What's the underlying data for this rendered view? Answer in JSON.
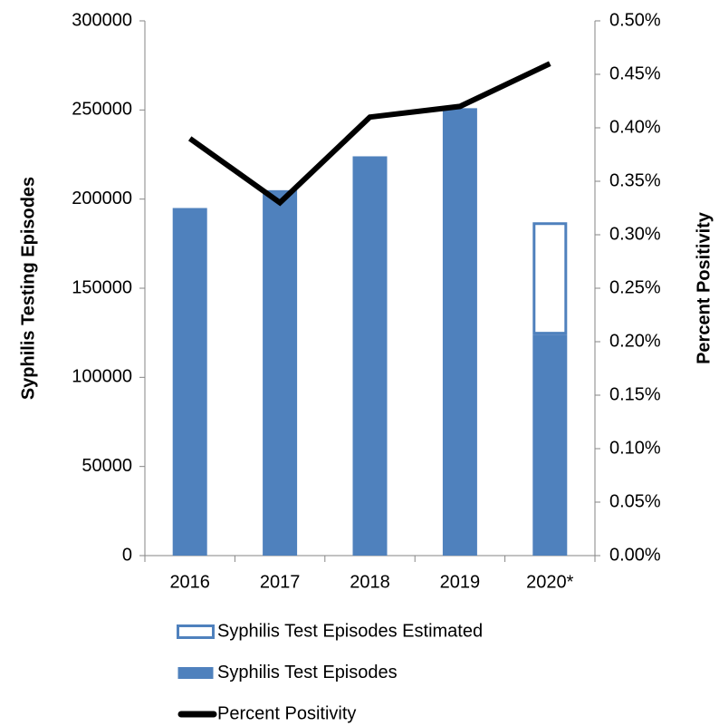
{
  "chart_data": {
    "type": "bar",
    "categories": [
      "2016",
      "2017",
      "2018",
      "2019",
      "2020*"
    ],
    "series": [
      {
        "name": "Syphilis Test Episodes Estimated",
        "type": "bar",
        "color": "#4f81bd",
        "fill": "#ffffff",
        "values": [
          null,
          null,
          null,
          null,
          63000
        ]
      },
      {
        "name": "Syphilis Test Episodes",
        "type": "bar",
        "color": "#4f81bd",
        "fill": "#4f81bd",
        "values": [
          195000,
          205000,
          224000,
          251000,
          124000
        ]
      },
      {
        "name": "Percent Positivity",
        "type": "line",
        "axis": "y2",
        "color": "#000000",
        "values": [
          0.39,
          0.33,
          0.41,
          0.42,
          0.46
        ]
      }
    ],
    "stacked": true,
    "ylabel": "Syphilis Testing Episodes",
    "y2label": "Percent Positivity",
    "ylim": [
      0,
      300000
    ],
    "yticks": [
      0,
      50000,
      100000,
      150000,
      200000,
      250000,
      300000
    ],
    "y2lim": [
      0,
      0.5
    ],
    "y2ticks": [
      {
        "value": 0,
        "label": "0.00%"
      },
      {
        "value": 0.05,
        "label": "0.05%"
      },
      {
        "value": 0.1,
        "label": "0.10%"
      },
      {
        "value": 0.15,
        "label": "0.15%"
      },
      {
        "value": 0.2,
        "label": "0.20%"
      },
      {
        "value": 0.25,
        "label": "0.25%"
      },
      {
        "value": 0.3,
        "label": "0.30%"
      },
      {
        "value": 0.35,
        "label": "0.35%"
      },
      {
        "value": 0.4,
        "label": "0.40%"
      },
      {
        "value": 0.45,
        "label": "0.45%"
      },
      {
        "value": 0.5,
        "label": "0.50%"
      }
    ],
    "grid": false,
    "legend": "bottom"
  }
}
